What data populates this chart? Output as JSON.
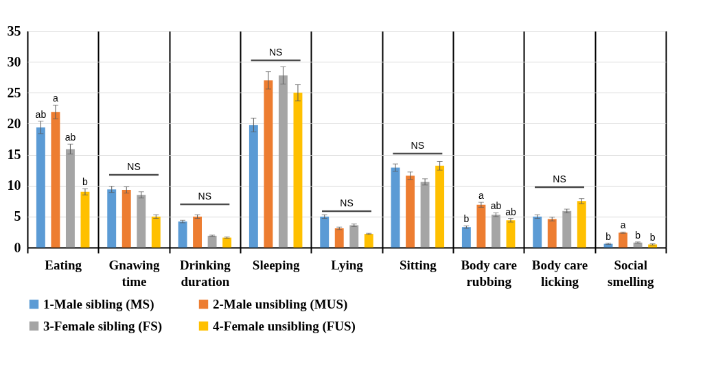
{
  "chart_data": {
    "type": "bar",
    "categories": [
      "Eating",
      "Gnawing time",
      "Drinking duration",
      "Sleeping",
      "Lying",
      "Sitting",
      "Body care rubbing",
      "Body care licking",
      "Social smelling"
    ],
    "series": [
      {
        "name": "1-Male sibling (MS)",
        "color": "#5b9bd5",
        "values": [
          19.4,
          9.4,
          4.2,
          19.8,
          5.0,
          12.9,
          3.3,
          5.0,
          0.6
        ],
        "errors": [
          1.0,
          0.5,
          0.2,
          1.1,
          0.3,
          0.6,
          0.2,
          0.3,
          0.1
        ],
        "value_labels": [
          "ab",
          null,
          null,
          null,
          null,
          null,
          "b",
          null,
          "b"
        ]
      },
      {
        "name": "2-Male unsibling (MUS)",
        "color": "#ed7d31",
        "values": [
          21.9,
          9.3,
          5.0,
          27.0,
          3.1,
          11.6,
          6.9,
          4.6,
          2.4
        ],
        "errors": [
          1.1,
          0.5,
          0.3,
          1.4,
          0.2,
          0.6,
          0.4,
          0.3,
          0.1
        ],
        "value_labels": [
          "a",
          null,
          null,
          null,
          null,
          null,
          "a",
          null,
          "a"
        ]
      },
      {
        "name": "3-Female sibling (FS)",
        "color": "#a5a5a5",
        "values": [
          15.9,
          8.5,
          1.9,
          27.8,
          3.6,
          10.6,
          5.3,
          5.9,
          0.8
        ],
        "errors": [
          0.8,
          0.5,
          0.1,
          1.4,
          0.2,
          0.5,
          0.3,
          0.3,
          0.1
        ],
        "value_labels": [
          "ab",
          null,
          null,
          null,
          null,
          null,
          "ab",
          null,
          "b"
        ]
      },
      {
        "name": "4-Female unsibling (FUS)",
        "color": "#ffc000",
        "values": [
          9.0,
          5.0,
          1.6,
          25.0,
          2.2,
          13.2,
          4.4,
          7.5,
          0.5
        ],
        "errors": [
          0.5,
          0.3,
          0.1,
          1.3,
          0.1,
          0.7,
          0.3,
          0.4,
          0.1
        ],
        "value_labels": [
          "b",
          null,
          null,
          null,
          null,
          null,
          "ab",
          null,
          "b"
        ]
      }
    ],
    "annotations": [
      "NS",
      "NS",
      "NS",
      "NS",
      "NS",
      "NS"
    ],
    "ylim": [
      0,
      35
    ],
    "yticks": [
      0,
      5,
      10,
      15,
      20,
      25,
      30,
      35
    ],
    "grid": "y",
    "legend": "bottom"
  }
}
